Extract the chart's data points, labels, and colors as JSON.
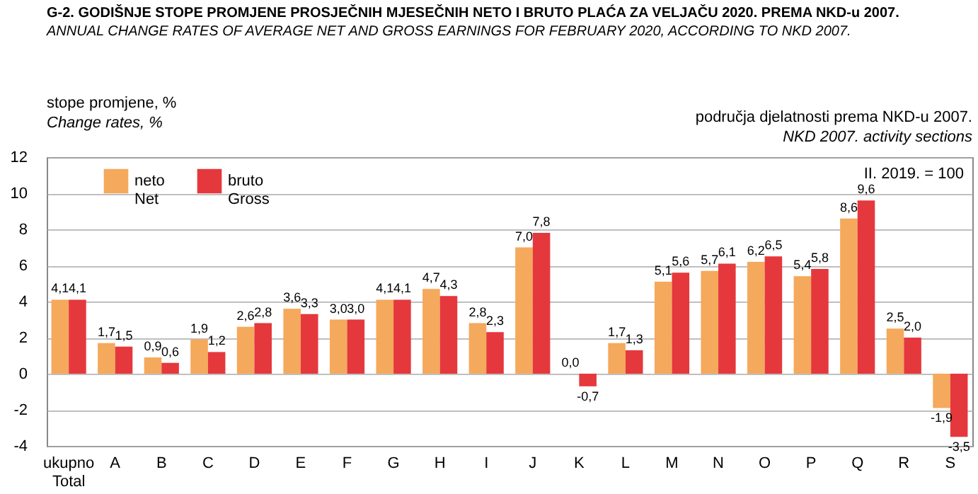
{
  "chart_data": {
    "type": "bar",
    "title": "G-2.  GODIŠNJE STOPE PROMJENE PROSJEČNIH MJESEČNIH NETO I BRUTO PLAĆA ZA VELJAČU 2020. PREMA NKD-u 2007.",
    "subtitle": "ANNUAL CHANGE RATES OF AVERAGE NET AND GROSS EARNINGS FOR FEBRUARY 2020, ACCORDING TO NKD 2007.",
    "ylabel": "stope promjene, %\nChange rates, %",
    "xlabel": "područja djelatnosti prema NKD-u 2007.\nNKD 2007. activity sections",
    "annotations": [
      "II. 2019. = 100"
    ],
    "categories": [
      "ukupno\nTotal",
      "A",
      "B",
      "C",
      "D",
      "E",
      "F",
      "G",
      "H",
      "I",
      "J",
      "K",
      "L",
      "M",
      "N",
      "O",
      "P",
      "Q",
      "R",
      "S"
    ],
    "series": [
      {
        "name": "neto\nNet",
        "color": "#f5a95c",
        "values": [
          4.1,
          1.7,
          0.9,
          1.9,
          2.6,
          3.6,
          3.0,
          4.1,
          4.7,
          2.8,
          7.0,
          0.0,
          1.7,
          5.1,
          5.7,
          6.2,
          5.4,
          8.6,
          2.5,
          -1.9
        ],
        "value_labels": [
          "4,1",
          "1,7",
          "0,9",
          "1,9",
          "2,6",
          "3,6",
          "3,0",
          "4,1",
          "4,7",
          "2,8",
          "7,0",
          "0,0",
          "1,7",
          "5,1",
          "5,7",
          "6,2",
          "5,4",
          "8,6",
          "2,5",
          "-1,9"
        ]
      },
      {
        "name": "bruto\nGross",
        "color": "#e5383d",
        "values": [
          4.1,
          1.5,
          0.6,
          1.2,
          2.8,
          3.3,
          3.0,
          4.1,
          4.3,
          2.3,
          7.8,
          -0.7,
          1.3,
          5.6,
          6.1,
          6.5,
          5.8,
          9.6,
          2.0,
          -3.5
        ],
        "value_labels": [
          "4,1",
          "1,5",
          "0,6",
          "1,2",
          "2,8",
          "3,3",
          "3,0",
          "4,1",
          "4,3",
          "2,3",
          "7,8",
          "-0,7",
          "1,3",
          "5,6",
          "6,1",
          "6,5",
          "5,8",
          "9,6",
          "2,0",
          "-3,5"
        ]
      }
    ],
    "ylim": [
      -4,
      12
    ],
    "yticks": [
      -4,
      -2,
      0,
      2,
      4,
      6,
      8,
      10,
      12
    ],
    "grid": "y",
    "legend": "top left"
  }
}
